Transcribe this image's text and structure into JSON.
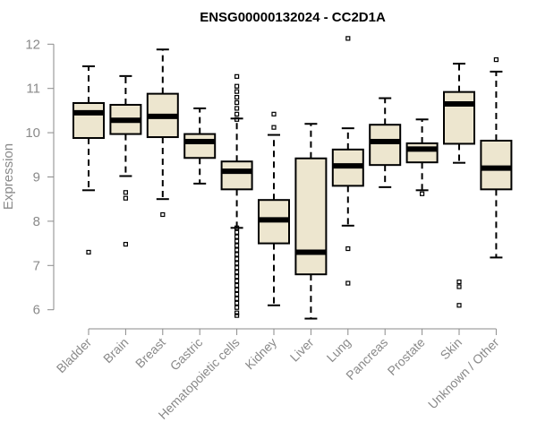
{
  "chart_data": {
    "type": "boxplot",
    "title": "ENSG00000132024 - CC2D1A",
    "xlabel": "",
    "ylabel": "Expression",
    "ylim": [
      5.8,
      12.2
    ],
    "yticks": [
      6,
      7,
      8,
      9,
      10,
      11,
      12
    ],
    "grid": false,
    "categories": [
      "Bladder",
      "Brain",
      "Breast",
      "Gastric",
      "Hematopoietic cells",
      "Kidney",
      "Liver",
      "Lung",
      "Pancreas",
      "Prostate",
      "Skin",
      "Unknown / Other"
    ],
    "boxes": [
      {
        "category": "Bladder",
        "min": 8.7,
        "q1": 9.88,
        "median": 10.45,
        "q3": 10.67,
        "max": 11.5,
        "outliers": [
          7.3
        ]
      },
      {
        "category": "Brain",
        "min": 9.02,
        "q1": 9.97,
        "median": 10.28,
        "q3": 10.63,
        "max": 11.28,
        "outliers": [
          8.65,
          8.52,
          7.48
        ]
      },
      {
        "category": "Breast",
        "min": 8.5,
        "q1": 9.9,
        "median": 10.37,
        "q3": 10.88,
        "max": 11.88,
        "outliers": [
          8.15
        ]
      },
      {
        "category": "Gastric",
        "min": 8.85,
        "q1": 9.43,
        "median": 9.8,
        "q3": 9.97,
        "max": 10.55,
        "outliers": []
      },
      {
        "category": "Hematopoietic cells",
        "min": 7.85,
        "q1": 8.72,
        "median": 9.13,
        "q3": 9.35,
        "max": 10.32,
        "outliers": [
          11.27,
          11.05,
          10.93,
          10.8,
          10.68,
          10.55,
          10.42,
          10.3,
          7.85,
          7.75,
          7.65,
          7.55,
          7.45,
          7.35,
          7.25,
          7.15,
          7.05,
          6.95,
          6.85,
          6.75,
          6.65,
          6.55,
          6.45,
          6.35,
          6.25,
          6.15,
          6.05,
          5.93,
          5.87
        ]
      },
      {
        "category": "Kidney",
        "min": 6.1,
        "q1": 7.5,
        "median": 8.03,
        "q3": 8.48,
        "max": 9.95,
        "outliers": [
          10.12,
          10.42
        ]
      },
      {
        "category": "Liver",
        "min": 5.8,
        "q1": 6.8,
        "median": 7.3,
        "q3": 9.42,
        "max": 10.2,
        "outliers": []
      },
      {
        "category": "Lung",
        "min": 7.9,
        "q1": 8.8,
        "median": 9.25,
        "q3": 9.62,
        "max": 10.1,
        "outliers": [
          12.13,
          7.38,
          6.6
        ]
      },
      {
        "category": "Pancreas",
        "min": 8.77,
        "q1": 9.27,
        "median": 9.8,
        "q3": 10.18,
        "max": 10.78,
        "outliers": []
      },
      {
        "category": "Prostate",
        "min": 8.7,
        "q1": 9.33,
        "median": 9.63,
        "q3": 9.76,
        "max": 10.3,
        "outliers": [
          8.62
        ]
      },
      {
        "category": "Skin",
        "min": 9.32,
        "q1": 9.75,
        "median": 10.65,
        "q3": 10.92,
        "max": 11.56,
        "outliers": [
          6.63,
          6.52,
          6.1
        ]
      },
      {
        "category": "Unknown / Other",
        "min": 7.18,
        "q1": 8.72,
        "median": 9.2,
        "q3": 9.82,
        "max": 11.38,
        "outliers": [
          11.65
        ]
      }
    ],
    "colors": {
      "box_fill": "#ede6cf",
      "box_stroke": "#000000",
      "axis": "#8a8a8a"
    }
  }
}
